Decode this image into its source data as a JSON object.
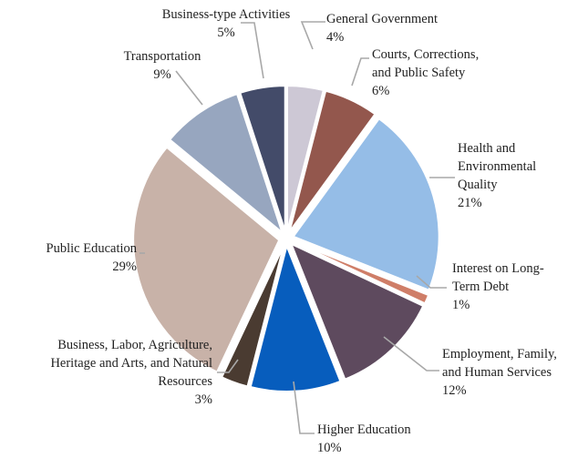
{
  "chart_data": {
    "type": "pie",
    "title": "",
    "slices": [
      {
        "name": "General Government",
        "value": 4,
        "label": "4%",
        "color": "#cdc8d5",
        "label_lines": [
          "General Government"
        ]
      },
      {
        "name": "Courts, Corrections, and Public Safety",
        "value": 6,
        "label": "6%",
        "color": "#93574d",
        "label_lines": [
          "Courts, Corrections,",
          "and Public Safety"
        ]
      },
      {
        "name": "Health and Environmental Quality",
        "value": 21,
        "label": "21%",
        "color": "#95bde7",
        "label_lines": [
          "Health and",
          "Environmental",
          "Quality"
        ]
      },
      {
        "name": "Interest on Long-Term Debt",
        "value": 1,
        "label": "1%",
        "color": "#cf7e68",
        "label_lines": [
          "Interest on Long-",
          "Term Debt"
        ]
      },
      {
        "name": "Employment, Family, and Human Services",
        "value": 12,
        "label": "12%",
        "color": "#5e4a5e",
        "label_lines": [
          "Employment, Family,",
          "and Human Services"
        ]
      },
      {
        "name": "Higher Education",
        "value": 10,
        "label": "10%",
        "color": "#075dbd",
        "label_lines": [
          "Higher Education"
        ]
      },
      {
        "name": "Business, Labor, Agriculture, Heritage and Arts, and Natural Resources",
        "value": 3,
        "label": "3%",
        "color": "#4a3b31",
        "label_lines": [
          "Business, Labor, Agriculture,",
          "Heritage and Arts, and Natural",
          "Resources"
        ]
      },
      {
        "name": "Public Education",
        "value": 29,
        "label": "29%",
        "color": "#c8b2a8",
        "label_lines": [
          "Public Education"
        ]
      },
      {
        "name": "Transportation",
        "value": 9,
        "label": "9%",
        "color": "#97a6bf",
        "label_lines": [
          "Transportation"
        ]
      },
      {
        "name": "Business-type Activities",
        "value": 5,
        "label": "5%",
        "color": "#434b69",
        "label_lines": [
          "Business-type Activities"
        ]
      }
    ]
  }
}
